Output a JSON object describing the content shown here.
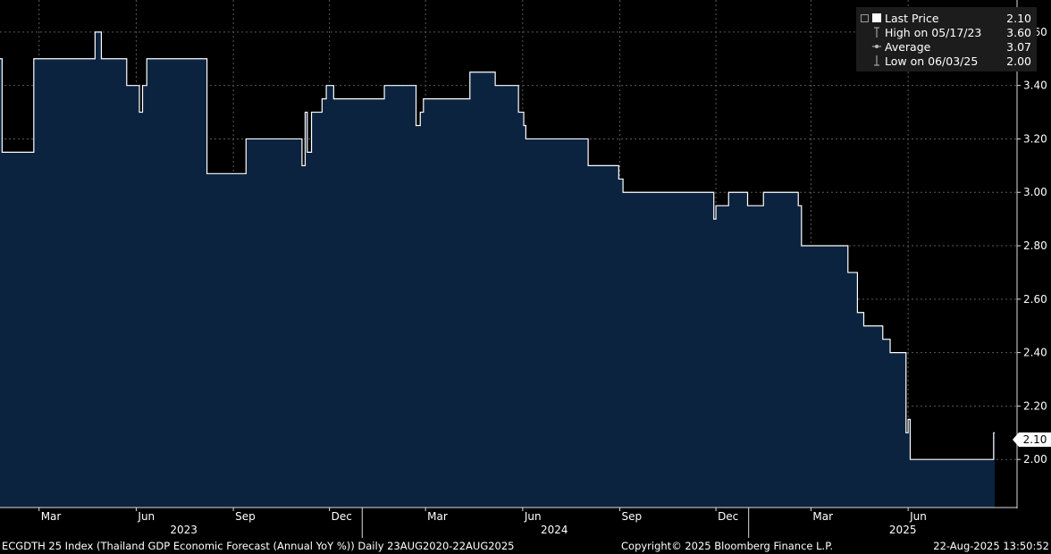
{
  "chart_data": {
    "type": "area",
    "ylim": [
      1.82,
      3.72
    ],
    "y_ticks": [
      "3.60",
      "3.40",
      "3.20",
      "3.00",
      "2.80",
      "2.60",
      "2.40",
      "2.20",
      "2.00"
    ],
    "x_range": [
      "2023-01-23",
      "2025-08-22"
    ],
    "month_ticks": [
      {
        "label": "Mar",
        "date": "2023-03-01"
      },
      {
        "label": "Jun",
        "date": "2023-06-01"
      },
      {
        "label": "Sep",
        "date": "2023-09-01"
      },
      {
        "label": "Dec",
        "date": "2023-12-01"
      },
      {
        "label": "Mar",
        "date": "2024-03-01"
      },
      {
        "label": "Jun",
        "date": "2024-06-01"
      },
      {
        "label": "Sep",
        "date": "2024-09-01"
      },
      {
        "label": "Dec",
        "date": "2024-12-01"
      },
      {
        "label": "Mar",
        "date": "2025-03-01"
      },
      {
        "label": "Jun",
        "date": "2025-06-01"
      }
    ],
    "year_labels": [
      {
        "label": "2023",
        "date": "2023-07-16"
      },
      {
        "label": "2024",
        "date": "2024-07-01"
      },
      {
        "label": "2025",
        "date": "2025-05-27"
      }
    ],
    "year_dividers": [
      "2024-01-01",
      "2025-01-01"
    ],
    "grid": true,
    "series": [
      {
        "name": "Last Price",
        "fill": "#0c2340",
        "line": "#ffffff",
        "points": [
          [
            "2023-01-23",
            3.5
          ],
          [
            "2023-01-25",
            3.15
          ],
          [
            "2023-02-24",
            3.5
          ],
          [
            "2023-04-23",
            3.6
          ],
          [
            "2023-04-29",
            3.5
          ],
          [
            "2023-05-23",
            3.4
          ],
          [
            "2023-06-04",
            3.3
          ],
          [
            "2023-06-07",
            3.4
          ],
          [
            "2023-06-11",
            3.5
          ],
          [
            "2023-08-07",
            3.07
          ],
          [
            "2023-09-13",
            3.2
          ],
          [
            "2023-11-05",
            3.1
          ],
          [
            "2023-11-08",
            3.3
          ],
          [
            "2023-11-10",
            3.15
          ],
          [
            "2023-11-14",
            3.3
          ],
          [
            "2023-11-24",
            3.35
          ],
          [
            "2023-11-28",
            3.4
          ],
          [
            "2023-12-05",
            3.35
          ],
          [
            "2024-01-22",
            3.4
          ],
          [
            "2024-02-21",
            3.25
          ],
          [
            "2024-02-25",
            3.3
          ],
          [
            "2024-02-28",
            3.35
          ],
          [
            "2024-04-12",
            3.45
          ],
          [
            "2024-05-06",
            3.4
          ],
          [
            "2024-05-28",
            3.3
          ],
          [
            "2024-06-02",
            3.25
          ],
          [
            "2024-06-04",
            3.2
          ],
          [
            "2024-08-02",
            3.1
          ],
          [
            "2024-08-31",
            3.05
          ],
          [
            "2024-09-04",
            3.0
          ],
          [
            "2024-11-29",
            2.9
          ],
          [
            "2024-12-01",
            2.95
          ],
          [
            "2024-12-13",
            3.0
          ],
          [
            "2024-12-31",
            2.95
          ],
          [
            "2025-01-15",
            3.0
          ],
          [
            "2025-02-17",
            2.95
          ],
          [
            "2025-02-20",
            2.8
          ],
          [
            "2025-04-05",
            2.7
          ],
          [
            "2025-04-14",
            2.55
          ],
          [
            "2025-04-20",
            2.5
          ],
          [
            "2025-05-08",
            2.45
          ],
          [
            "2025-05-15",
            2.4
          ],
          [
            "2025-05-30",
            2.1
          ],
          [
            "2025-06-01",
            2.15
          ],
          [
            "2025-06-03",
            2.0
          ],
          [
            "2025-08-21",
            2.1
          ],
          [
            "2025-08-22",
            2.1
          ]
        ]
      }
    ]
  },
  "legend": {
    "items": [
      {
        "label": "Last Price",
        "value": "2.10"
      },
      {
        "label": "High on 05/17/23",
        "value": "3.60"
      },
      {
        "label": "Average",
        "value": "3.07"
      },
      {
        "label": "Low on 06/03/25",
        "value": "2.00"
      }
    ]
  },
  "last_value_tag": "2.10",
  "footer": {
    "left": "ECGDTH 25 Index (Thailand GDP Economic Forecast (Annual YoY %))  Daily 23AUG2020-22AUG2025",
    "center": "Copyright© 2025 Bloomberg Finance L.P.",
    "right": "22-Aug-2025 13:50:52"
  },
  "colors": {
    "background": "#000000",
    "area": "#0c2340",
    "line": "#ffffff",
    "grid": "#5a5a5a"
  }
}
